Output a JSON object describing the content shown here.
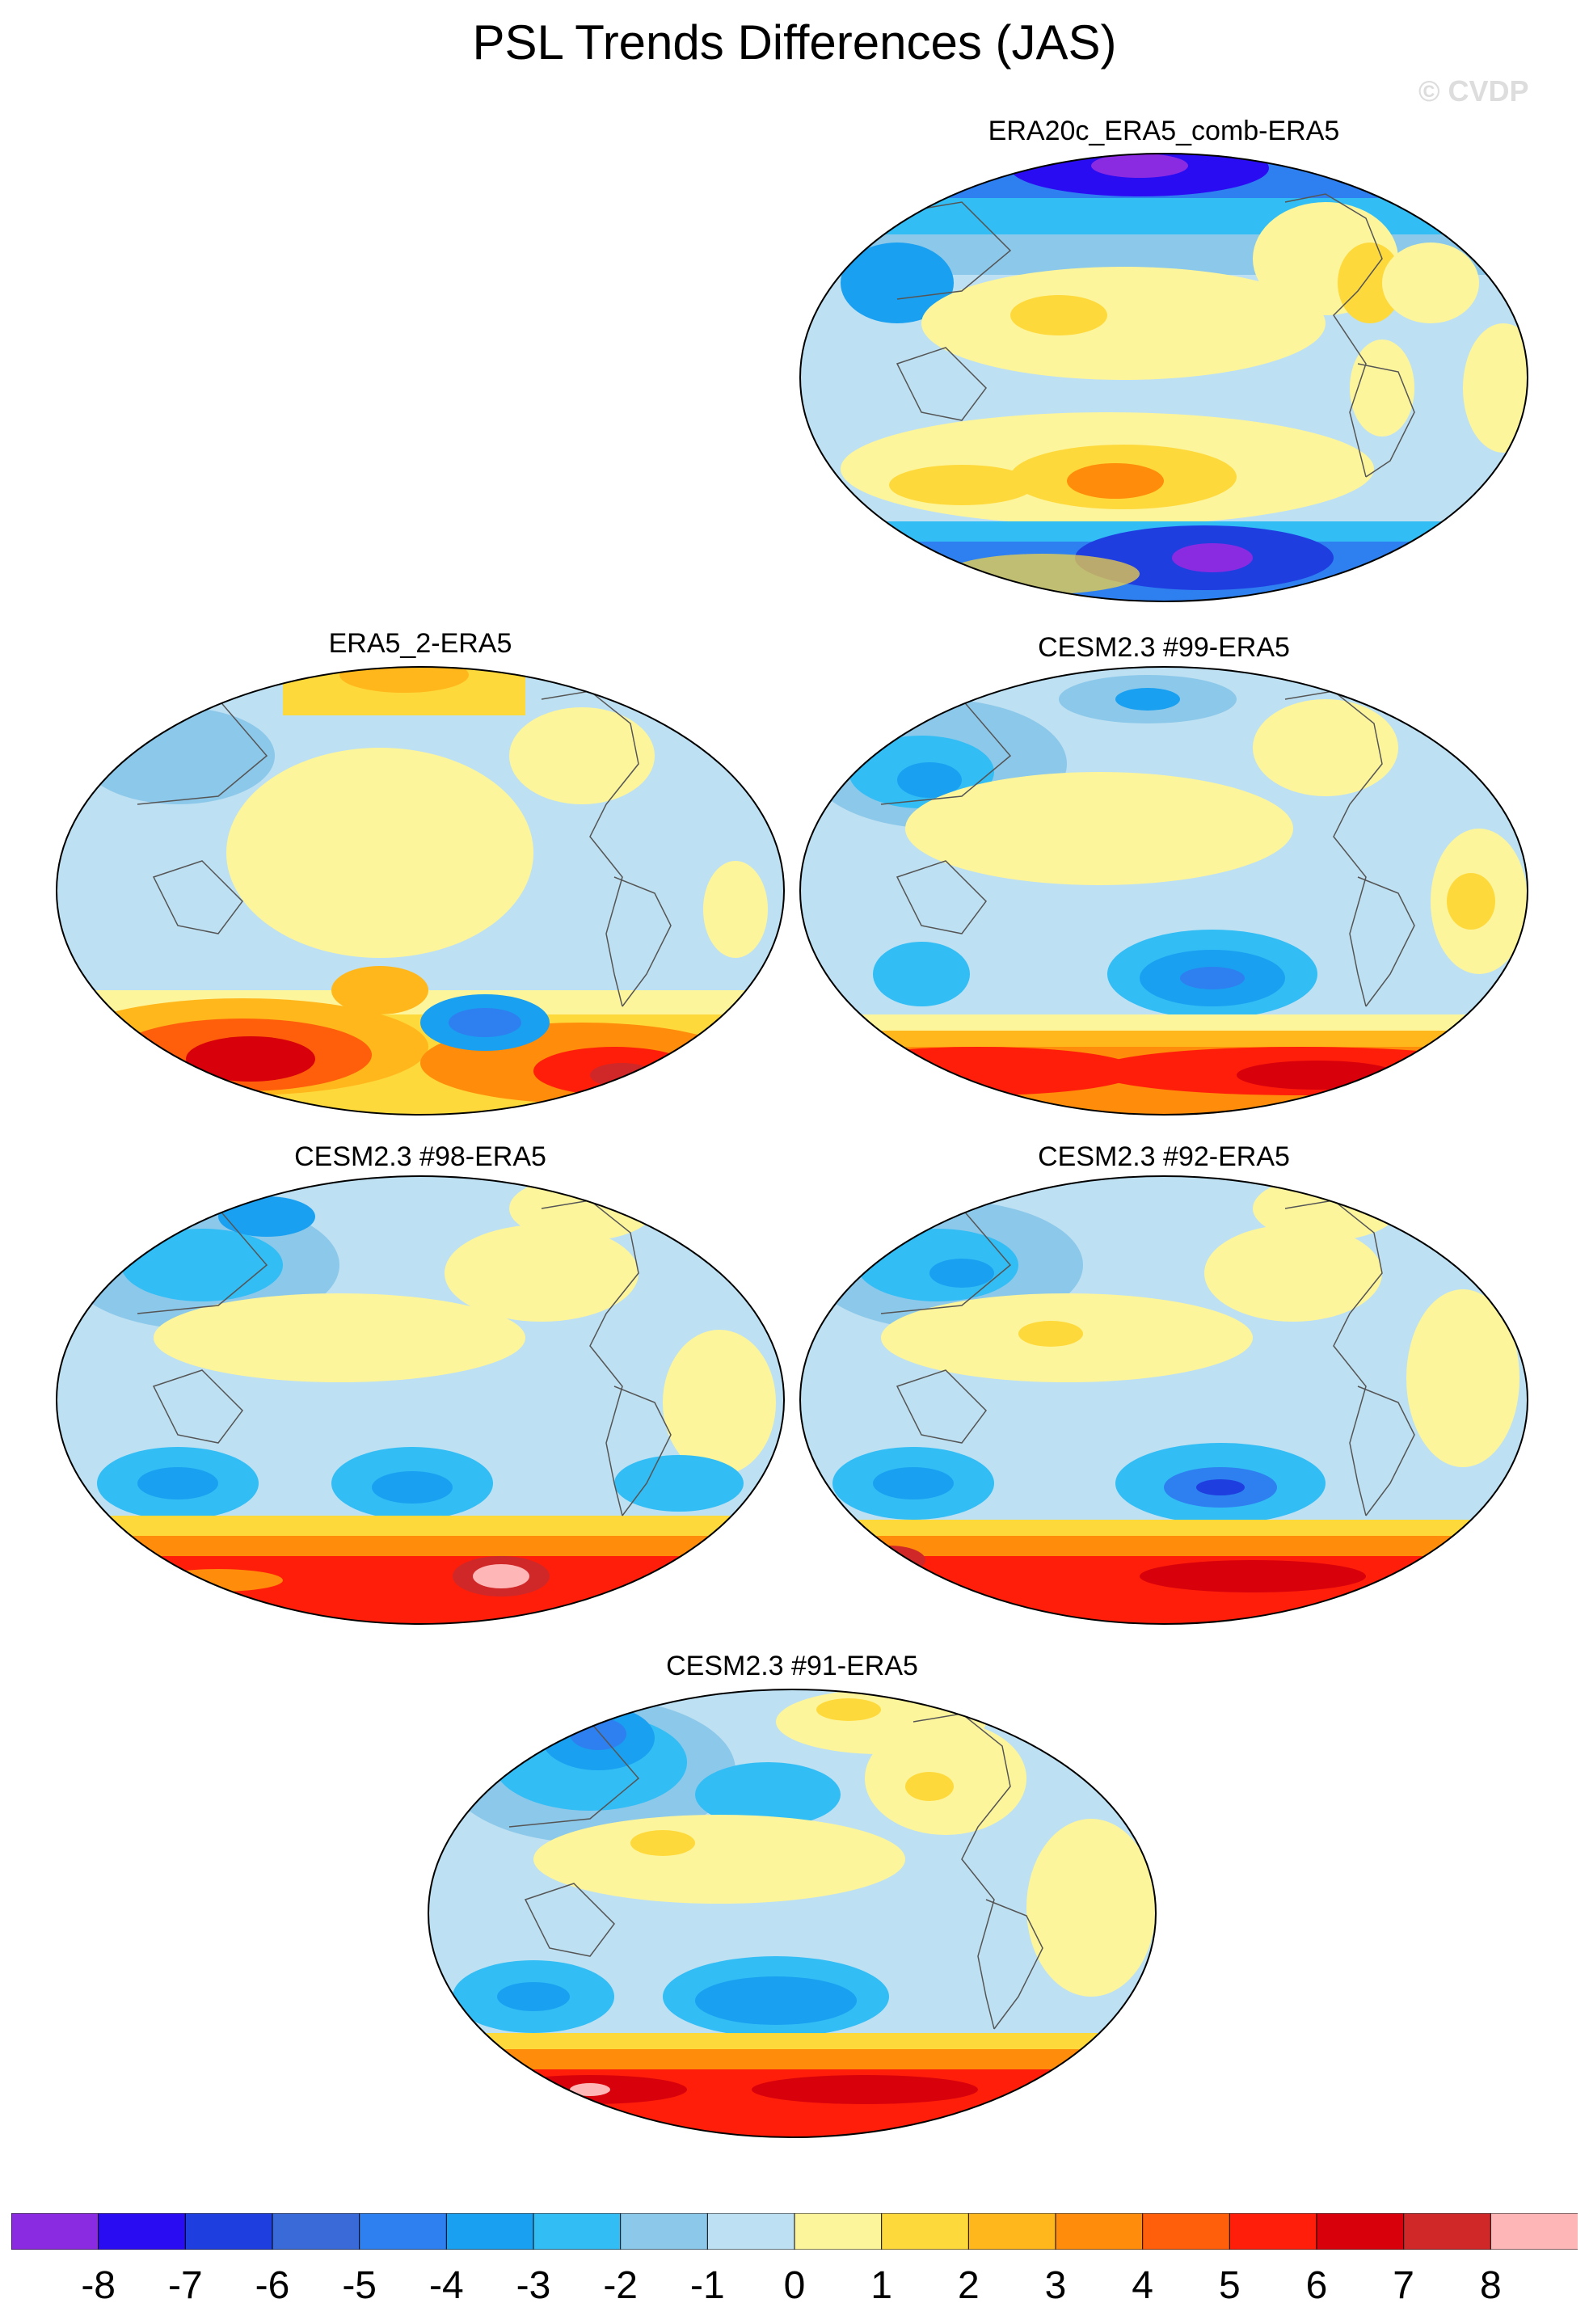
{
  "title": "PSL Trends Differences (JAS)",
  "watermark": "© CVDP",
  "panels": [
    {
      "id": "p1",
      "label": "ERA20c_ERA5_comb-ERA5"
    },
    {
      "id": "p2",
      "label": "ERA5_2-ERA5"
    },
    {
      "id": "p3",
      "label": "CESM2.3 #99-ERA5"
    },
    {
      "id": "p4",
      "label": "CESM2.3 #98-ERA5"
    },
    {
      "id": "p5",
      "label": "CESM2.3 #92-ERA5"
    },
    {
      "id": "p6",
      "label": "CESM2.3 #91-ERA5"
    }
  ],
  "colorbar": {
    "colors": [
      "#8a2be2",
      "#2a0cf2",
      "#1e3ee0",
      "#3a6ad8",
      "#2e7ff0",
      "#1aa0f0",
      "#32bdf5",
      "#8cc8ea",
      "#bde0f2",
      "#fdf59c",
      "#fed93c",
      "#ffb71c",
      "#ff8c0a",
      "#ff5e0a",
      "#ff1e0a",
      "#d8000a",
      "#d02828",
      "#ffb6b6"
    ],
    "labels": [
      "-8",
      "-7",
      "-6",
      "-5",
      "-4",
      "-3",
      "-2",
      "-1",
      "0",
      "1",
      "2",
      "3",
      "4",
      "5",
      "6",
      "7",
      "8"
    ]
  }
}
